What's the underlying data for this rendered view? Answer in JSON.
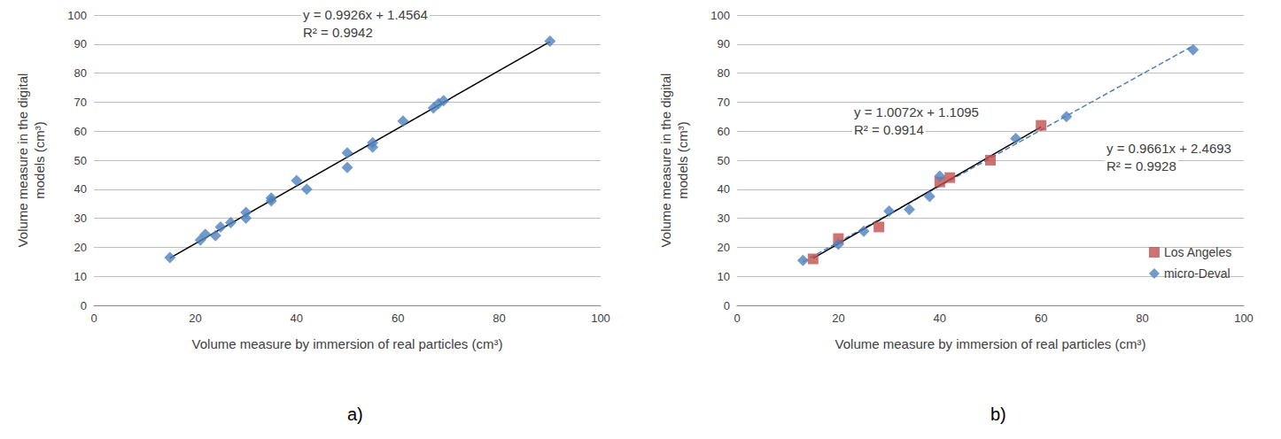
{
  "chart_data": [
    {
      "type": "scatter",
      "title": "a)",
      "x_label": "Volume measure by immersion of real particles (cm³)",
      "y_label": "Volume measure in the digital\nmodels (cm³)",
      "xlim": [
        0,
        100
      ],
      "xticks": [
        0,
        20,
        40,
        60,
        80,
        100
      ],
      "ylim": [
        0,
        100
      ],
      "yticks": [
        0,
        10,
        20,
        30,
        40,
        50,
        60,
        70,
        80,
        90,
        100
      ],
      "grid": true,
      "annotations": [
        [
          "y = 0.9926x + 1.4564",
          "R² = 0.9942"
        ]
      ],
      "series": [
        {
          "type": "scatter",
          "color": "#4f81bd",
          "marker": "diamond",
          "x": [
            15,
            21,
            22,
            24,
            25,
            27,
            30,
            30,
            35,
            35,
            40,
            42,
            50,
            50,
            55,
            55,
            61,
            67,
            68,
            69,
            90
          ],
          "values": [
            16.5,
            22.5,
            24.5,
            24,
            27,
            28.5,
            32,
            30,
            37,
            36,
            43,
            40,
            52.5,
            47.5,
            56,
            54.5,
            63.5,
            68,
            69.5,
            70.5,
            91
          ]
        },
        {
          "type": "line",
          "color": "#000000",
          "line_style": "solid",
          "x": [
            15,
            90
          ],
          "values": [
            16.3,
            90.8
          ]
        }
      ]
    },
    {
      "type": "scatter",
      "title": "b)",
      "x_label": "Volume measure by immersion of real particles (cm³)",
      "y_label": "Volume measure in the digital\nmodels (cm³)",
      "xlim": [
        0,
        100
      ],
      "xticks": [
        0,
        20,
        40,
        60,
        80,
        100
      ],
      "ylim": [
        0,
        100
      ],
      "yticks": [
        0,
        10,
        20,
        30,
        40,
        50,
        60,
        70,
        80,
        90,
        100
      ],
      "grid": true,
      "legend": "bottom-right",
      "annotations": [
        [
          "y = 1.0072x + 1.1095",
          "R² = 0.9914"
        ],
        [
          "y = 0.9661x + 2.4693",
          "R² = 0.9928"
        ]
      ],
      "series": [
        {
          "type": "line",
          "color": "#4f81bd",
          "line_style": "dashed",
          "x": [
            13,
            90
          ],
          "values": [
            15,
            89.4
          ]
        },
        {
          "type": "line",
          "color": "#000000",
          "line_style": "solid",
          "x": [
            15,
            60
          ],
          "values": [
            16.2,
            61.5
          ]
        },
        {
          "name": "Los Angeles",
          "type": "scatter",
          "color": "#c0504d",
          "marker": "square",
          "x": [
            15,
            20,
            28,
            40,
            42,
            50,
            60
          ],
          "values": [
            16,
            23,
            27,
            42.5,
            44,
            50,
            62
          ]
        },
        {
          "name": "micro-Deval",
          "type": "scatter",
          "color": "#4f81bd",
          "marker": "diamond",
          "x": [
            13,
            20,
            25,
            30,
            34,
            38,
            40,
            55,
            65,
            90
          ],
          "values": [
            15.5,
            21,
            25.5,
            32.5,
            33,
            37.5,
            44.5,
            57.5,
            65,
            88
          ]
        }
      ]
    }
  ]
}
